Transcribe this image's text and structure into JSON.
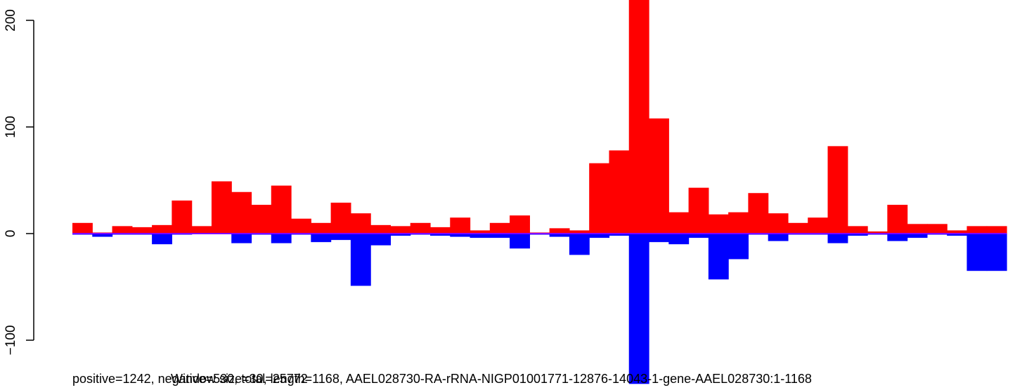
{
  "chart_data": {
    "type": "bar",
    "x": [
      1,
      2,
      3,
      4,
      5,
      6,
      7,
      8,
      9,
      10,
      11,
      12,
      13,
      14,
      15,
      16,
      17,
      18,
      19,
      20,
      21,
      22,
      23,
      24,
      25,
      26,
      27,
      28,
      29,
      30,
      31,
      32,
      33,
      34,
      35,
      36,
      37,
      38,
      39,
      40,
      41,
      42,
      43,
      44,
      45,
      46,
      47
    ],
    "series": [
      {
        "values": [
          10,
          1,
          7,
          6,
          8,
          31,
          7,
          49,
          39,
          27,
          45,
          14,
          10,
          29,
          19,
          8,
          7,
          10,
          6,
          15,
          3,
          10,
          17,
          1,
          5,
          3,
          66,
          78,
          225,
          108,
          20,
          43,
          18,
          20,
          38,
          19,
          10,
          15,
          82,
          7,
          2,
          27,
          9,
          9,
          3,
          7,
          7
        ],
        "color": "#ff0000"
      },
      {
        "values": [
          -1,
          -3,
          -1,
          -1,
          -10,
          -1,
          0,
          0,
          -9,
          -1,
          -9,
          -1,
          -8,
          -6,
          -49,
          -11,
          -2,
          -1,
          -2,
          -3,
          -4,
          -4,
          -14,
          -1,
          -3,
          -20,
          -4,
          -2,
          -141,
          -8,
          -10,
          -4,
          -43,
          -24,
          -1,
          -7,
          -1,
          -1,
          -9,
          -2,
          -1,
          -7,
          -4,
          -1,
          -2,
          -35,
          -35
        ],
        "color": "#0000ff"
      }
    ],
    "ylim": [
      -141,
      220
    ],
    "yticks": [
      "-100",
      "0",
      "100",
      "200"
    ],
    "grid": false,
    "caption_parts": [
      "positive=1242, negative=530, total=25772",
      "Window size=30, length=1168, AAEL028730-RA-rRNA-NIGP01001771-12876-14043-1-gene-AAEL028730:1-1168"
    ]
  }
}
